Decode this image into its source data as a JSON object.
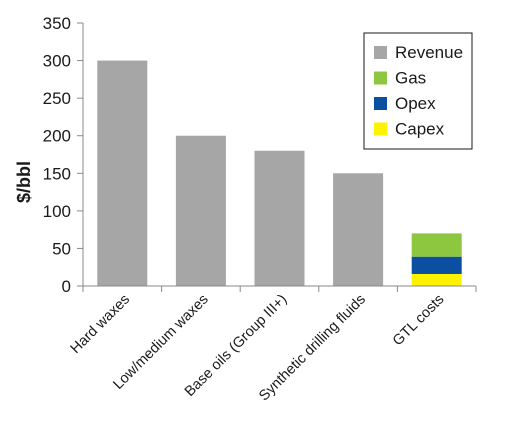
{
  "chart_data": {
    "type": "bar",
    "stacked": true,
    "categories": [
      "Hard waxes",
      "Low/medium waxes",
      "Base oils (Group III+)",
      "Synthetic drilling fluids",
      "GTL costs"
    ],
    "series": [
      {
        "name": "Revenue",
        "color": "#a6a6a6",
        "values": [
          300,
          200,
          180,
          150,
          0
        ]
      },
      {
        "name": "Gas",
        "color": "#8dc63f",
        "values": [
          0,
          0,
          0,
          0,
          31
        ]
      },
      {
        "name": "Opex",
        "color": "#0b4fa0",
        "values": [
          0,
          0,
          0,
          0,
          23
        ]
      },
      {
        "name": "Capex",
        "color": "#fff200",
        "values": [
          0,
          0,
          0,
          0,
          16
        ]
      }
    ],
    "stack_order": [
      "Capex",
      "Opex",
      "Gas",
      "Revenue"
    ],
    "ylabel": "$/bbl",
    "xlabel": "",
    "title": "",
    "ylim": [
      0,
      350
    ],
    "yticks": [
      0,
      50,
      100,
      150,
      200,
      250,
      300,
      350
    ],
    "grid": false,
    "legend_position": "top-right",
    "axis_color": "#888888"
  }
}
